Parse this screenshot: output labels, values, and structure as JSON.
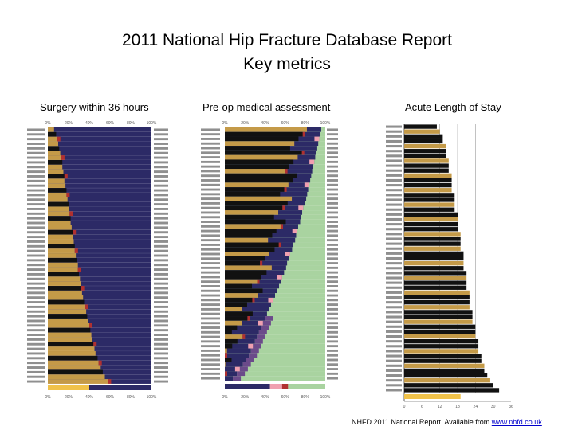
{
  "title_line1": "2011 National Hip Fracture Database Report",
  "title_line2": "Key metrics",
  "footer": {
    "text": "NHFD 2011 National Report. Available from ",
    "link": "www.nhfd.co.uk"
  },
  "colors": {
    "gold": "#c49a48",
    "navy": "#2c2a66",
    "black": "#111111",
    "red": "#b03030",
    "green": "#a9d3a0",
    "purple": "#6b4a8a",
    "pink": "#f0a0b0"
  },
  "chart_data": [
    {
      "type": "bar",
      "title": "Surgery within 36 hours",
      "orientation": "horizontal",
      "stacked": true,
      "xlim": [
        0,
        100
      ],
      "x_tick_labels": [
        "0%",
        "20%",
        "40%",
        "60%",
        "80%",
        "100%"
      ],
      "bottom_tick_labels": [
        "0%",
        "20%",
        "40%",
        "60%",
        "80%",
        "100%"
      ],
      "n_hospitals": 55,
      "percent_within_36h_by_hospital_sorted_desc": [
        94,
        92,
        91,
        90,
        89,
        88,
        87,
        86,
        86,
        85,
        84,
        84,
        83,
        82,
        82,
        81,
        80,
        80,
        79,
        78,
        78,
        77,
        76,
        76,
        75,
        74,
        74,
        73,
        72,
        71,
        71,
        70,
        69,
        68,
        68,
        67,
        66,
        65,
        64,
        63,
        62,
        61,
        60,
        59,
        58,
        57,
        56,
        55,
        54,
        52,
        51,
        49,
        47,
        45,
        42
      ],
      "national_average_percent": 60
    },
    {
      "type": "bar",
      "title": "Pre-op medical assessment",
      "orientation": "horizontal",
      "stacked": true,
      "xlim": [
        0,
        100
      ],
      "x_tick_labels": [
        "0%",
        "20%",
        "40%",
        "60%",
        "80%",
        "100%"
      ],
      "bottom_tick_labels": [
        "0%",
        "20%",
        "40%",
        "60%",
        "80%",
        "100%"
      ],
      "n_hospitals": 55,
      "percent_assessed_by_hospital_sorted_desc": [
        96,
        95,
        94,
        93,
        92,
        91,
        90,
        89,
        88,
        87,
        86,
        85,
        84,
        83,
        82,
        81,
        80,
        78,
        77,
        76,
        75,
        73,
        72,
        71,
        70,
        68,
        67,
        65,
        64,
        62,
        61,
        59,
        57,
        56,
        54,
        52,
        50,
        48,
        46,
        44,
        42,
        40,
        38,
        36,
        34,
        32,
        30,
        28,
        26,
        24,
        21,
        18,
        15,
        12,
        8
      ],
      "national_average_segments_percent": [
        45,
        12,
        6,
        37
      ]
    },
    {
      "type": "bar",
      "title": "Acute Length of Stay",
      "orientation": "horizontal",
      "xlim": [
        0,
        36
      ],
      "x_tick_labels": [
        "0",
        "6",
        "12",
        "18",
        "24",
        "30",
        "36"
      ],
      "gridlines_at": [
        12,
        18,
        24,
        30
      ],
      "n_hospitals": 55,
      "days_by_hospital_sorted_asc": [
        11,
        12,
        13,
        13,
        14,
        14,
        14,
        15,
        15,
        15,
        16,
        16,
        16,
        16,
        17,
        17,
        17,
        17,
        18,
        18,
        18,
        18,
        19,
        19,
        19,
        19,
        20,
        20,
        20,
        20,
        21,
        21,
        21,
        21,
        22,
        22,
        22,
        22,
        23,
        23,
        23,
        24,
        24,
        24,
        25,
        25,
        25,
        26,
        26,
        27,
        27,
        28,
        29,
        30,
        32
      ],
      "national_average_days": 19
    }
  ]
}
